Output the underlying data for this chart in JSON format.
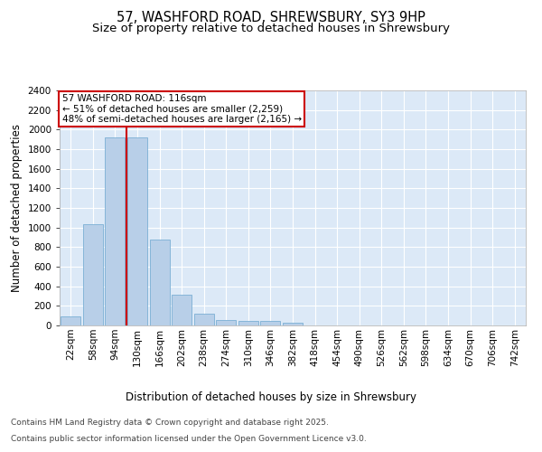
{
  "title_line1": "57, WASHFORD ROAD, SHREWSBURY, SY3 9HP",
  "title_line2": "Size of property relative to detached houses in Shrewsbury",
  "xlabel": "Distribution of detached houses by size in Shrewsbury",
  "ylabel": "Number of detached properties",
  "categories": [
    "22sqm",
    "58sqm",
    "94sqm",
    "130sqm",
    "166sqm",
    "202sqm",
    "238sqm",
    "274sqm",
    "310sqm",
    "346sqm",
    "382sqm",
    "418sqm",
    "454sqm",
    "490sqm",
    "526sqm",
    "562sqm",
    "598sqm",
    "634sqm",
    "670sqm",
    "706sqm",
    "742sqm"
  ],
  "values": [
    90,
    1030,
    1920,
    1920,
    880,
    315,
    120,
    60,
    50,
    45,
    25,
    0,
    0,
    0,
    0,
    0,
    0,
    0,
    0,
    0,
    0
  ],
  "bar_color": "#b8cfe8",
  "bar_edge_color": "#7bafd4",
  "vline_color": "#cc0000",
  "vline_x": 2.5,
  "annotation_text_line1": "57 WASHFORD ROAD: 116sqm",
  "annotation_text_line2": "← 51% of detached houses are smaller (2,259)",
  "annotation_text_line3": "48% of semi-detached houses are larger (2,165) →",
  "annotation_box_edgecolor": "#cc0000",
  "ylim": [
    0,
    2400
  ],
  "yticks": [
    0,
    200,
    400,
    600,
    800,
    1000,
    1200,
    1400,
    1600,
    1800,
    2000,
    2200,
    2400
  ],
  "bg_color": "#dce9f7",
  "grid_color": "#ffffff",
  "footer_line1": "Contains HM Land Registry data © Crown copyright and database right 2025.",
  "footer_line2": "Contains public sector information licensed under the Open Government Licence v3.0.",
  "title_fontsize": 10.5,
  "subtitle_fontsize": 9.5,
  "axis_label_fontsize": 8.5,
  "tick_fontsize": 7.5,
  "annotation_fontsize": 7.5,
  "footer_fontsize": 6.5
}
